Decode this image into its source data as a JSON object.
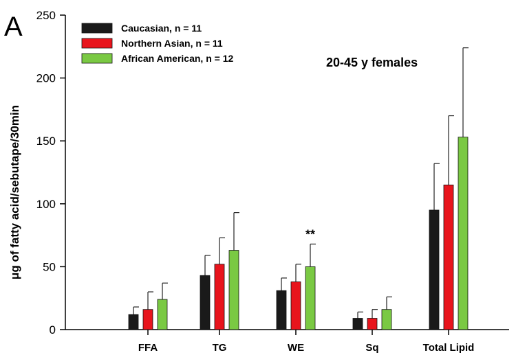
{
  "chart_data": {
    "type": "bar",
    "panel_label": "A",
    "subtitle": "20-45 y females",
    "ylabel": "μg of fatty acid/sebutape/30min",
    "xlabel": "",
    "ylim": [
      0,
      250
    ],
    "yticks": [
      "0",
      "50",
      "100",
      "150",
      "200",
      "250"
    ],
    "categories": [
      "FFA",
      "TG",
      "WE",
      "Sq",
      "Total Lipid"
    ],
    "legend_position": "top-left",
    "series": [
      {
        "name": "Caucasian, n = 11",
        "color": "#1a1a1a",
        "values": [
          12,
          43,
          31,
          9,
          95
        ],
        "errors": [
          6,
          16,
          10,
          5,
          37
        ]
      },
      {
        "name": "Northern Asian, n = 11",
        "color": "#e8141c",
        "values": [
          16,
          52,
          38,
          9,
          115
        ],
        "errors": [
          14,
          21,
          14,
          7,
          55
        ]
      },
      {
        "name": "African American, n = 12",
        "color": "#7ac943",
        "values": [
          24,
          63,
          50,
          16,
          153
        ],
        "errors": [
          13,
          30,
          18,
          10,
          71
        ]
      }
    ],
    "annotations": [
      {
        "text": "**",
        "category": "WE",
        "series": 2
      }
    ]
  }
}
